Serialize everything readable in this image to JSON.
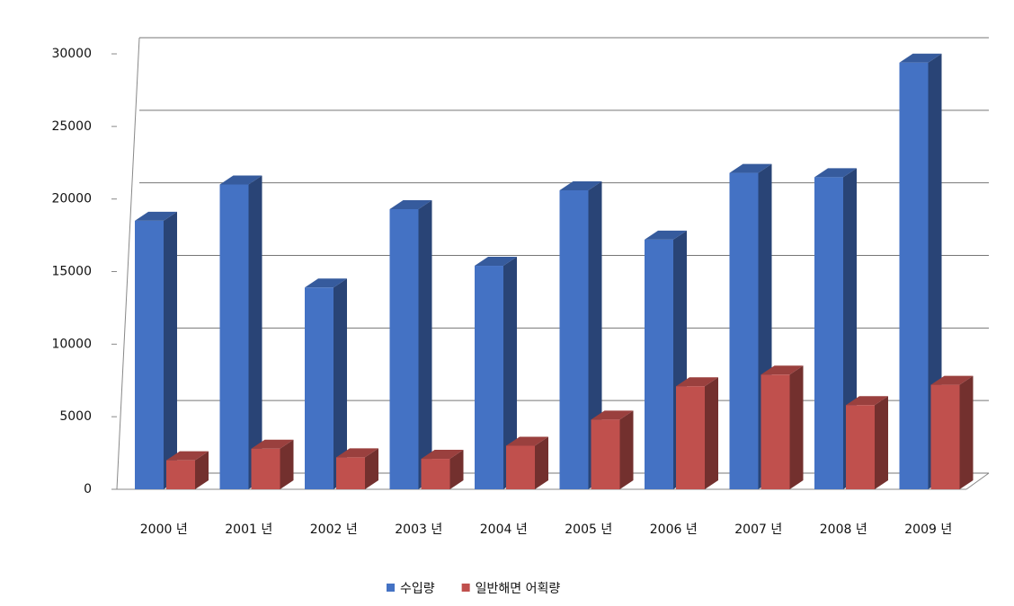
{
  "chart_data": {
    "type": "bar3d",
    "categories": [
      "2000 년",
      "2001 년",
      "2002 년",
      "2003 년",
      "2004 년",
      "2005 년",
      "2006 년",
      "2007 년",
      "2008 년",
      "2009 년"
    ],
    "series": [
      {
        "name": "수입량",
        "color": "#4472c4",
        "values": [
          18500,
          21000,
          13900,
          19300,
          15400,
          20600,
          17200,
          21800,
          21500,
          29400
        ]
      },
      {
        "name": "일반해면 어획량",
        "color": "#c0504d",
        "values": [
          2000,
          2800,
          2200,
          2100,
          3000,
          4800,
          7100,
          7900,
          5800,
          7200
        ]
      }
    ],
    "ylim": [
      0,
      30000
    ],
    "yticks": [
      0,
      5000,
      10000,
      15000,
      20000,
      25000,
      30000
    ],
    "grid": true,
    "legend": "bottom"
  }
}
